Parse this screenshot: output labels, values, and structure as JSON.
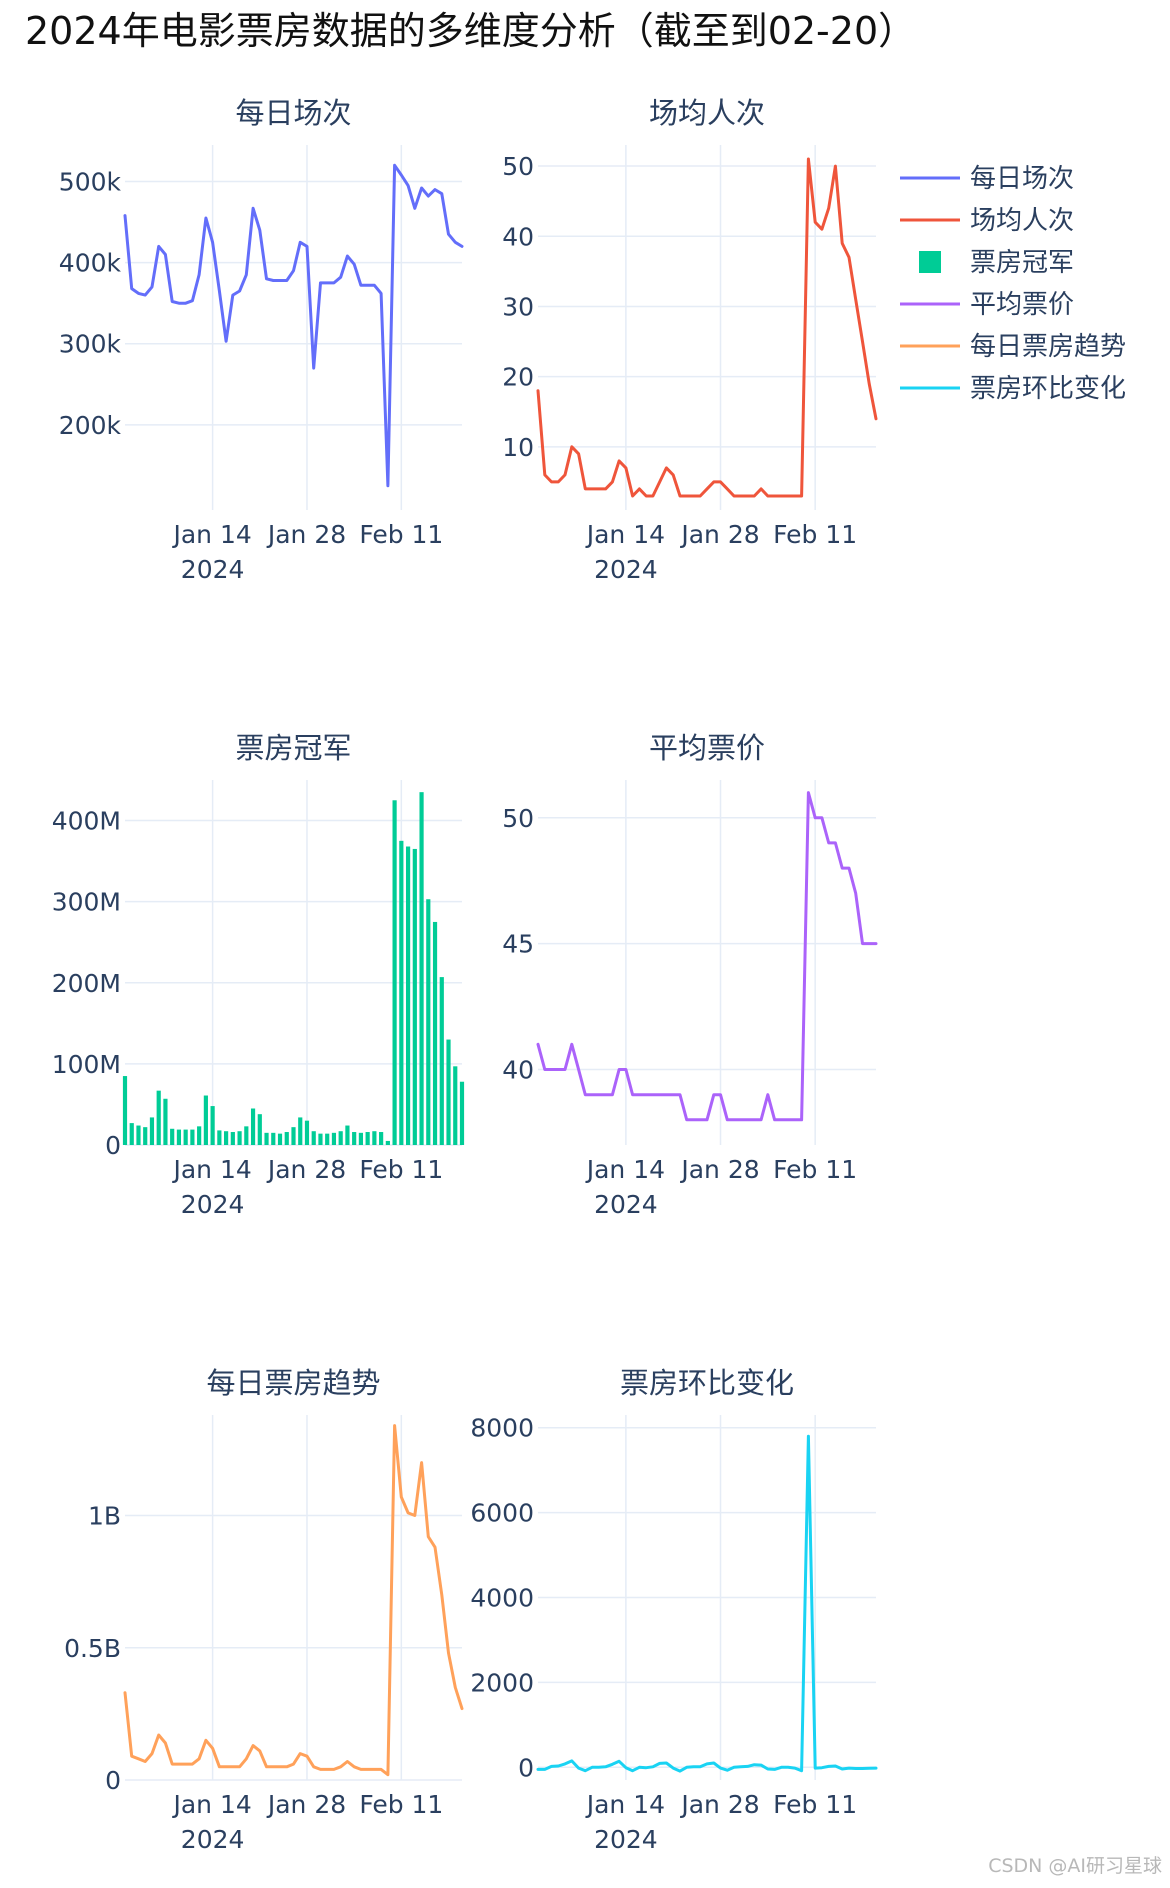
{
  "title": "2024年电影票房数据的多维度分析（截至到02-20）",
  "watermark": "CSDN @AI研习星球",
  "colors": {
    "grid": "#e5ecf6",
    "text": "#2a3f5f"
  },
  "legend": [
    {
      "name": "每日场次",
      "color": "#636efa",
      "symbol": "line"
    },
    {
      "name": "场均人次",
      "color": "#ef553b",
      "symbol": "line"
    },
    {
      "name": "票房冠军",
      "color": "#00cc96",
      "symbol": "square"
    },
    {
      "name": "平均票价",
      "color": "#ab63fa",
      "symbol": "line"
    },
    {
      "name": "每日票房趋势",
      "color": "#ffa15a",
      "symbol": "line"
    },
    {
      "name": "票房环比变化",
      "color": "#19d3f3",
      "symbol": "line"
    }
  ],
  "chart_data": [
    {
      "type": "line",
      "title": "每日场次",
      "color": "#636efa",
      "x_start": "2024-01-01",
      "x_end": "2024-02-20",
      "x_ticks": [
        "Jan 14",
        "Jan 28",
        "Feb 11"
      ],
      "x_tick_dates": [
        "2024-01-14",
        "2024-01-28",
        "2024-02-11"
      ],
      "x_year": "2024",
      "ylim": [
        95000,
        545000
      ],
      "y_ticks": [
        200000,
        300000,
        400000,
        500000
      ],
      "y_tick_labels": [
        "200k",
        "300k",
        "400k",
        "500k"
      ],
      "values": [
        458000,
        368000,
        362000,
        360000,
        370000,
        420000,
        410000,
        352000,
        350000,
        350000,
        353000,
        385000,
        455000,
        425000,
        365000,
        303000,
        360000,
        365000,
        385000,
        467000,
        440000,
        380000,
        378000,
        378000,
        378000,
        390000,
        425000,
        420000,
        270000,
        375000,
        375000,
        375000,
        382000,
        408000,
        398000,
        372000,
        372000,
        372000,
        362000,
        125000,
        520000,
        508000,
        495000,
        467000,
        492000,
        482000,
        490000,
        485000,
        435000,
        425000,
        420000
      ]
    },
    {
      "type": "line",
      "title": "场均人次",
      "color": "#ef553b",
      "x_start": "2024-01-01",
      "x_end": "2024-02-20",
      "x_ticks": [
        "Jan 14",
        "Jan 28",
        "Feb 11"
      ],
      "x_tick_dates": [
        "2024-01-14",
        "2024-01-28",
        "2024-02-11"
      ],
      "x_year": "2024",
      "ylim": [
        1,
        53
      ],
      "y_ticks": [
        10,
        20,
        30,
        40,
        50
      ],
      "y_tick_labels": [
        "10",
        "20",
        "30",
        "40",
        "50"
      ],
      "values": [
        18,
        6,
        5,
        5,
        6,
        10,
        9,
        4,
        4,
        4,
        4,
        5,
        8,
        7,
        3,
        4,
        3,
        3,
        5,
        7,
        6,
        3,
        3,
        3,
        3,
        4,
        5,
        5,
        4,
        3,
        3,
        3,
        3,
        4,
        3,
        3,
        3,
        3,
        3,
        3,
        51,
        42,
        41,
        44,
        50,
        39,
        37,
        31,
        25,
        19,
        14
      ]
    },
    {
      "type": "bar",
      "title": "票房冠军",
      "color": "#00cc96",
      "x_start": "2024-01-01",
      "x_end": "2024-02-20",
      "x_ticks": [
        "Jan 14",
        "Jan 28",
        "Feb 11"
      ],
      "x_tick_dates": [
        "2024-01-14",
        "2024-01-28",
        "2024-02-11"
      ],
      "x_year": "2024",
      "ylim": [
        0,
        450000000
      ],
      "y_ticks": [
        0,
        100000000,
        200000000,
        300000000,
        400000000
      ],
      "y_tick_labels": [
        "0",
        "100M",
        "200M",
        "300M",
        "400M"
      ],
      "values": [
        85000000,
        27000000,
        24000000,
        22000000,
        34000000,
        67000000,
        57000000,
        20000000,
        19000000,
        19000000,
        19000000,
        23000000,
        61000000,
        48000000,
        18000000,
        17000000,
        16000000,
        17000000,
        23000000,
        45000000,
        38000000,
        15000000,
        15000000,
        14000000,
        16000000,
        22000000,
        34000000,
        30000000,
        17000000,
        14000000,
        14000000,
        15000000,
        17000000,
        24000000,
        16000000,
        15000000,
        16000000,
        17000000,
        16000000,
        5000000,
        425000000,
        375000000,
        368000000,
        365000000,
        435000000,
        303000000,
        275000000,
        207000000,
        130000000,
        97000000,
        78000000
      ]
    },
    {
      "type": "line",
      "title": "平均票价",
      "color": "#ab63fa",
      "x_start": "2024-01-01",
      "x_end": "2024-02-20",
      "x_ticks": [
        "Jan 14",
        "Jan 28",
        "Feb 11"
      ],
      "x_tick_dates": [
        "2024-01-14",
        "2024-01-28",
        "2024-02-11"
      ],
      "x_year": "2024",
      "ylim": [
        37,
        51.5
      ],
      "y_ticks": [
        40,
        45,
        50
      ],
      "y_tick_labels": [
        "40",
        "45",
        "50"
      ],
      "values": [
        41,
        40,
        40,
        40,
        40,
        41,
        40,
        39,
        39,
        39,
        39,
        39,
        40,
        40,
        39,
        39,
        39,
        39,
        39,
        39,
        39,
        39,
        38,
        38,
        38,
        38,
        39,
        39,
        38,
        38,
        38,
        38,
        38,
        38,
        39,
        38,
        38,
        38,
        38,
        38,
        51,
        50,
        50,
        49,
        49,
        48,
        48,
        47,
        45,
        45,
        45
      ]
    },
    {
      "type": "line",
      "title": "每日票房趋势",
      "color": "#ffa15a",
      "x_start": "2024-01-01",
      "x_end": "2024-02-20",
      "x_ticks": [
        "Jan 14",
        "Jan 28",
        "Feb 11"
      ],
      "x_tick_dates": [
        "2024-01-14",
        "2024-01-28",
        "2024-02-11"
      ],
      "x_year": "2024",
      "ylim": [
        0,
        1.38
      ],
      "y_ticks": [
        0,
        0.5,
        1
      ],
      "y_tick_labels": [
        "0",
        "0.5B",
        "1B"
      ],
      "values": [
        0.33,
        0.09,
        0.08,
        0.07,
        0.1,
        0.17,
        0.14,
        0.06,
        0.06,
        0.06,
        0.06,
        0.08,
        0.15,
        0.12,
        0.05,
        0.05,
        0.05,
        0.05,
        0.08,
        0.13,
        0.11,
        0.05,
        0.05,
        0.05,
        0.05,
        0.06,
        0.1,
        0.09,
        0.05,
        0.04,
        0.04,
        0.04,
        0.05,
        0.07,
        0.05,
        0.04,
        0.04,
        0.04,
        0.04,
        0.02,
        1.34,
        1.07,
        1.01,
        1.0,
        1.2,
        0.92,
        0.88,
        0.7,
        0.48,
        0.35,
        0.27
      ]
    },
    {
      "type": "line",
      "title": "票房环比变化",
      "color": "#19d3f3",
      "x_start": "2024-01-01",
      "x_end": "2024-02-20",
      "x_ticks": [
        "Jan 14",
        "Jan 28",
        "Feb 11"
      ],
      "x_tick_dates": [
        "2024-01-14",
        "2024-01-28",
        "2024-02-11"
      ],
      "x_year": "2024",
      "ylim": [
        -300,
        8300
      ],
      "y_ticks": [
        0,
        2000,
        4000,
        6000,
        8000
      ],
      "y_tick_labels": [
        "0",
        "2000",
        "4000",
        "6000",
        "8000"
      ],
      "values": [
        -50,
        -50,
        20,
        30,
        80,
        150,
        -20,
        -80,
        0,
        0,
        10,
        70,
        140,
        -10,
        -80,
        0,
        -10,
        10,
        90,
        100,
        -20,
        -90,
        0,
        10,
        10,
        80,
        100,
        -20,
        -70,
        0,
        10,
        20,
        60,
        50,
        -40,
        -50,
        0,
        0,
        -20,
        -80,
        7800,
        -20,
        -10,
        20,
        30,
        -40,
        -20,
        -30,
        -30,
        -25,
        -20
      ]
    }
  ]
}
